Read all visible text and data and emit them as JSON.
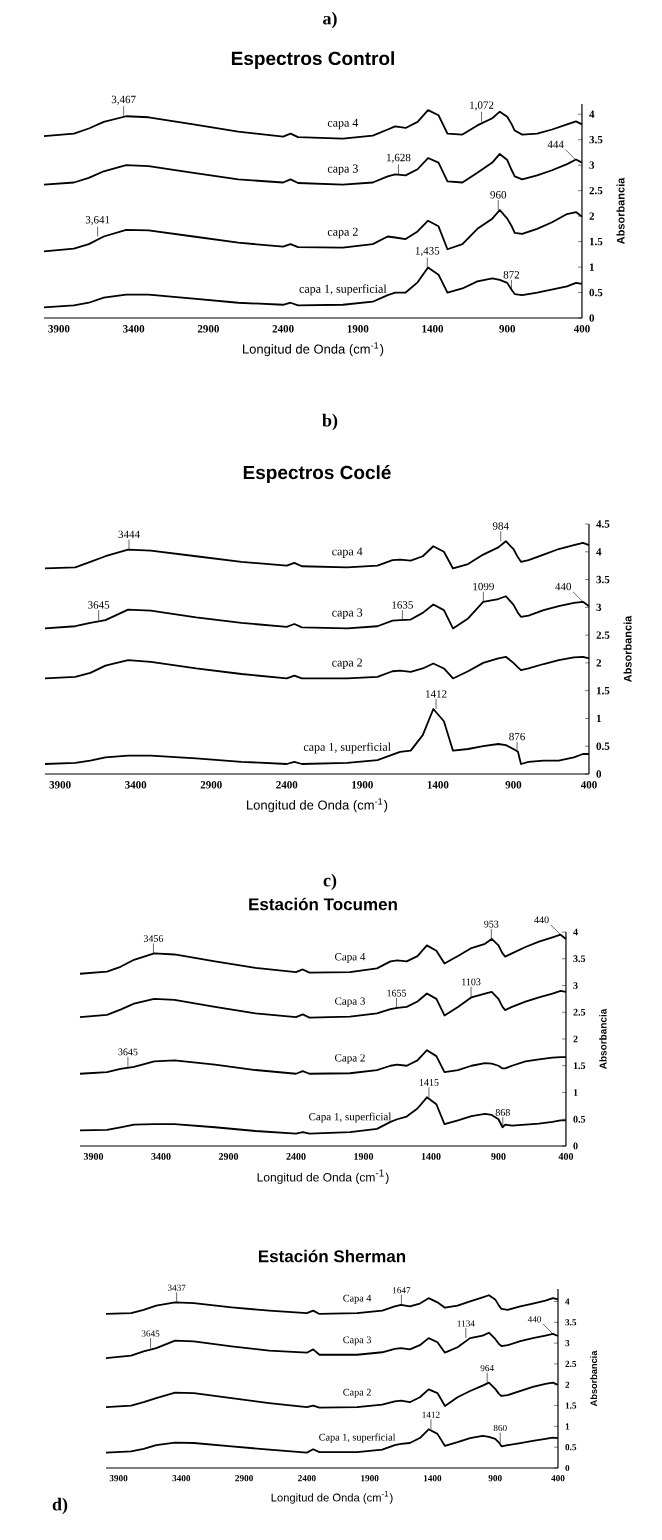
{
  "chart_data": [
    {
      "type": "line",
      "title": "Espectros Control",
      "xlabel": "Longitud de Onda (cm$^{-1}$)",
      "ylabel": "Absorbancia",
      "annotations": [
        "a)",
        {
          "text": "3,467",
          "x": 3467,
          "y": 3.96
        },
        {
          "text": "1,072",
          "x": 1072,
          "y": 3.85
        },
        {
          "text": "1,628",
          "x": 1628,
          "y": 2.82
        },
        {
          "text": "444",
          "x": 444,
          "y": 3.11
        },
        {
          "text": "3,641",
          "x": 3641,
          "y": 1.6
        },
        {
          "text": "960",
          "x": 960,
          "y": 2.12
        },
        {
          "text": "1,435",
          "x": 1435,
          "y": 0.99
        },
        {
          "text": "872",
          "x": 872,
          "y": 0.55
        }
      ],
      "x": [
        4000,
        3800,
        3700,
        3600,
        3450,
        3300,
        3000,
        2700,
        2400,
        2350,
        2300,
        2000,
        1800,
        1700,
        1650,
        1580,
        1500,
        1430,
        1360,
        1300,
        1200,
        1100,
        1000,
        950,
        900,
        870,
        850,
        800,
        700,
        600,
        500,
        440,
        400
      ],
      "xlim": [
        4000,
        400
      ],
      "xticks": [
        3900,
        3400,
        2900,
        2400,
        1900,
        1400,
        900,
        400
      ],
      "ylim": [
        0,
        4.2
      ],
      "yticks": [
        0,
        0.5,
        1,
        1.5,
        2,
        2.5,
        3,
        3.5,
        4
      ],
      "series": [
        {
          "name": "capa 4",
          "color": "#000000",
          "values": [
            3.57,
            3.62,
            3.72,
            3.85,
            3.96,
            3.94,
            3.8,
            3.66,
            3.56,
            3.62,
            3.55,
            3.52,
            3.58,
            3.7,
            3.76,
            3.73,
            3.85,
            4.08,
            3.98,
            3.62,
            3.6,
            3.78,
            3.92,
            4.05,
            3.95,
            3.8,
            3.68,
            3.6,
            3.62,
            3.7,
            3.8,
            3.86,
            3.8
          ]
        },
        {
          "name": "capa 3",
          "color": "#000000",
          "values": [
            2.62,
            2.66,
            2.75,
            2.88,
            3.0,
            2.98,
            2.85,
            2.72,
            2.66,
            2.72,
            2.65,
            2.62,
            2.66,
            2.78,
            2.82,
            2.8,
            2.92,
            3.14,
            3.05,
            2.68,
            2.66,
            2.85,
            3.05,
            3.22,
            3.1,
            2.9,
            2.78,
            2.72,
            2.8,
            2.9,
            3.02,
            3.11,
            3.05
          ]
        },
        {
          "name": "capa 2",
          "color": "#000000",
          "values": [
            1.31,
            1.36,
            1.45,
            1.6,
            1.73,
            1.72,
            1.6,
            1.48,
            1.4,
            1.45,
            1.39,
            1.38,
            1.45,
            1.6,
            1.58,
            1.55,
            1.7,
            1.91,
            1.8,
            1.35,
            1.45,
            1.75,
            1.95,
            2.12,
            1.95,
            1.8,
            1.67,
            1.65,
            1.75,
            1.88,
            2.04,
            2.08,
            1.99
          ]
        },
        {
          "name": "capa 1, superficial",
          "color": "#000000",
          "values": [
            0.21,
            0.25,
            0.3,
            0.4,
            0.46,
            0.46,
            0.38,
            0.3,
            0.26,
            0.3,
            0.25,
            0.26,
            0.32,
            0.45,
            0.5,
            0.5,
            0.7,
            0.99,
            0.85,
            0.5,
            0.58,
            0.72,
            0.78,
            0.75,
            0.69,
            0.55,
            0.47,
            0.45,
            0.5,
            0.56,
            0.62,
            0.69,
            0.67
          ]
        }
      ]
    },
    {
      "type": "line",
      "title": "Espectros Coclé",
      "xlabel": "Longitud de Onda (cm$^{-1}$)",
      "ylabel": "Absorbancia",
      "annotations": [
        "b)",
        {
          "text": "3444",
          "x": 3444,
          "y": 4.04
        },
        {
          "text": "984",
          "x": 984,
          "y": 4.19
        },
        {
          "text": "3645",
          "x": 3645,
          "y": 2.77
        },
        {
          "text": "1635",
          "x": 1635,
          "y": 2.77
        },
        {
          "text": "1099",
          "x": 1099,
          "y": 3.1
        },
        {
          "text": "440",
          "x": 440,
          "y": 3.1
        },
        {
          "text": "1412",
          "x": 1412,
          "y": 1.17
        },
        {
          "text": "876",
          "x": 876,
          "y": 0.4
        }
      ],
      "x": [
        4000,
        3800,
        3700,
        3600,
        3450,
        3300,
        3000,
        2700,
        2400,
        2350,
        2300,
        2000,
        1800,
        1700,
        1650,
        1580,
        1500,
        1430,
        1360,
        1300,
        1200,
        1100,
        1000,
        950,
        900,
        870,
        850,
        800,
        700,
        600,
        500,
        440,
        400
      ],
      "xlim": [
        4000,
        400
      ],
      "xticks": [
        3900,
        3400,
        2900,
        2400,
        1900,
        1400,
        900,
        400
      ],
      "ylim": [
        0,
        4.5
      ],
      "yticks": [
        0,
        0.5,
        1,
        1.5,
        2,
        2.5,
        3,
        3.5,
        4,
        4.5
      ],
      "series": [
        {
          "name": "capa 4",
          "color": "#000000",
          "values": [
            3.7,
            3.72,
            3.82,
            3.92,
            4.04,
            4.02,
            3.92,
            3.82,
            3.75,
            3.8,
            3.74,
            3.72,
            3.75,
            3.85,
            3.86,
            3.84,
            3.92,
            4.1,
            4.0,
            3.7,
            3.78,
            3.95,
            4.08,
            4.19,
            4.05,
            3.9,
            3.82,
            3.85,
            3.95,
            4.05,
            4.12,
            4.16,
            4.12
          ]
        },
        {
          "name": "capa 3",
          "color": "#000000",
          "values": [
            2.62,
            2.66,
            2.72,
            2.77,
            2.96,
            2.94,
            2.82,
            2.72,
            2.65,
            2.7,
            2.64,
            2.62,
            2.66,
            2.76,
            2.77,
            2.78,
            2.9,
            3.05,
            2.95,
            2.62,
            2.8,
            3.1,
            3.15,
            3.2,
            3.05,
            2.9,
            2.83,
            2.85,
            2.95,
            3.02,
            3.08,
            3.1,
            3.02
          ]
        },
        {
          "name": "capa 2",
          "color": "#000000",
          "values": [
            1.72,
            1.75,
            1.82,
            1.95,
            2.05,
            2.02,
            1.9,
            1.8,
            1.72,
            1.77,
            1.72,
            1.72,
            1.75,
            1.85,
            1.86,
            1.84,
            1.9,
            1.99,
            1.9,
            1.72,
            1.85,
            2.0,
            2.08,
            2.11,
            2.0,
            1.92,
            1.87,
            1.9,
            1.98,
            2.05,
            2.1,
            2.11,
            2.08
          ]
        },
        {
          "name": "capa 1, superficial",
          "color": "#000000",
          "values": [
            0.18,
            0.2,
            0.24,
            0.3,
            0.33,
            0.33,
            0.28,
            0.22,
            0.18,
            0.22,
            0.18,
            0.2,
            0.25,
            0.35,
            0.4,
            0.42,
            0.7,
            1.17,
            0.95,
            0.42,
            0.45,
            0.5,
            0.54,
            0.52,
            0.45,
            0.4,
            0.18,
            0.22,
            0.24,
            0.24,
            0.3,
            0.36,
            0.36
          ]
        }
      ]
    },
    {
      "type": "line",
      "title": "Estación Tocumen",
      "xlabel": "Longitud de Onda (cm$^{-1}$)",
      "ylabel": "Absorbancia",
      "annotations": [
        "c)",
        {
          "text": "3456",
          "x": 3456,
          "y": 3.6
        },
        {
          "text": "953",
          "x": 953,
          "y": 3.87
        },
        {
          "text": "440",
          "x": 440,
          "y": 3.95
        },
        {
          "text": "1655",
          "x": 1655,
          "y": 2.58
        },
        {
          "text": "1103",
          "x": 1103,
          "y": 2.79
        },
        {
          "text": "3645",
          "x": 3645,
          "y": 1.48
        },
        {
          "text": "1415",
          "x": 1415,
          "y": 0.91
        },
        {
          "text": "868",
          "x": 868,
          "y": 0.35
        }
      ],
      "x": [
        4000,
        3800,
        3700,
        3600,
        3450,
        3300,
        3000,
        2700,
        2400,
        2350,
        2300,
        2000,
        1800,
        1700,
        1650,
        1580,
        1500,
        1430,
        1360,
        1300,
        1200,
        1100,
        1000,
        950,
        900,
        870,
        850,
        800,
        700,
        600,
        500,
        440,
        400
      ],
      "xlim": [
        4000,
        400
      ],
      "xticks": [
        3900,
        3400,
        2900,
        2400,
        1900,
        1400,
        900,
        400
      ],
      "ylim": [
        0,
        4
      ],
      "yticks": [
        0,
        0.5,
        1,
        1.5,
        2,
        2.5,
        3,
        3.5,
        4
      ],
      "series": [
        {
          "name": "Capa 4",
          "color": "#000000",
          "values": [
            3.22,
            3.26,
            3.35,
            3.48,
            3.6,
            3.58,
            3.45,
            3.33,
            3.25,
            3.3,
            3.24,
            3.25,
            3.32,
            3.45,
            3.47,
            3.45,
            3.55,
            3.75,
            3.65,
            3.41,
            3.55,
            3.7,
            3.78,
            3.87,
            3.75,
            3.6,
            3.54,
            3.6,
            3.72,
            3.82,
            3.9,
            3.95,
            3.87
          ]
        },
        {
          "name": "Capa 3",
          "color": "#000000",
          "values": [
            2.41,
            2.45,
            2.55,
            2.66,
            2.75,
            2.73,
            2.6,
            2.48,
            2.41,
            2.46,
            2.4,
            2.42,
            2.48,
            2.56,
            2.58,
            2.6,
            2.7,
            2.85,
            2.75,
            2.44,
            2.6,
            2.78,
            2.85,
            2.88,
            2.75,
            2.6,
            2.54,
            2.6,
            2.7,
            2.78,
            2.85,
            2.9,
            2.88
          ]
        },
        {
          "name": "Capa 2",
          "color": "#000000",
          "values": [
            1.35,
            1.38,
            1.44,
            1.48,
            1.58,
            1.6,
            1.52,
            1.42,
            1.35,
            1.4,
            1.35,
            1.36,
            1.42,
            1.5,
            1.52,
            1.5,
            1.6,
            1.79,
            1.68,
            1.38,
            1.42,
            1.5,
            1.55,
            1.54,
            1.5,
            1.45,
            1.45,
            1.5,
            1.58,
            1.62,
            1.65,
            1.66,
            1.66
          ]
        },
        {
          "name": "Capa 1, superficial",
          "color": "#000000",
          "values": [
            0.29,
            0.3,
            0.35,
            0.4,
            0.41,
            0.41,
            0.35,
            0.28,
            0.23,
            0.26,
            0.23,
            0.26,
            0.32,
            0.45,
            0.5,
            0.55,
            0.7,
            0.91,
            0.78,
            0.41,
            0.48,
            0.56,
            0.6,
            0.58,
            0.5,
            0.35,
            0.4,
            0.38,
            0.4,
            0.42,
            0.45,
            0.48,
            0.48
          ]
        }
      ]
    },
    {
      "type": "line",
      "title": "Estación Sherman",
      "xlabel": "Longitud de Onda (cm$^{-1}$)",
      "ylabel": "Absorbancia",
      "annotations": [
        "d)",
        {
          "text": "3437",
          "x": 3437,
          "y": 3.98
        },
        {
          "text": "1647",
          "x": 1647,
          "y": 3.92
        },
        {
          "text": "3645",
          "x": 3645,
          "y": 2.88
        },
        {
          "text": "1134",
          "x": 1134,
          "y": 3.12
        },
        {
          "text": "440",
          "x": 440,
          "y": 3.22
        },
        {
          "text": "964",
          "x": 964,
          "y": 2.05
        },
        {
          "text": "1412",
          "x": 1412,
          "y": 0.93
        },
        {
          "text": "860",
          "x": 860,
          "y": 0.61
        }
      ],
      "x": [
        4000,
        3800,
        3700,
        3600,
        3450,
        3300,
        3000,
        2700,
        2400,
        2350,
        2300,
        2000,
        1800,
        1700,
        1650,
        1580,
        1500,
        1430,
        1360,
        1300,
        1200,
        1100,
        1000,
        950,
        900,
        870,
        850,
        800,
        700,
        600,
        500,
        440,
        400
      ],
      "xlim": [
        4000,
        400
      ],
      "xticks": [
        3900,
        3400,
        2900,
        2400,
        1900,
        1400,
        900,
        400
      ],
      "ylim": [
        0,
        4.3
      ],
      "yticks": [
        0,
        0.5,
        1,
        1.5,
        2,
        2.5,
        3,
        3.5,
        4
      ],
      "series": [
        {
          "name": "Capa 4",
          "color": "#000000",
          "values": [
            3.7,
            3.72,
            3.8,
            3.9,
            3.98,
            3.96,
            3.86,
            3.78,
            3.72,
            3.78,
            3.7,
            3.72,
            3.78,
            3.88,
            3.92,
            3.88,
            3.95,
            4.08,
            3.98,
            3.85,
            3.9,
            4.0,
            4.1,
            4.15,
            4.05,
            3.9,
            3.82,
            3.8,
            3.88,
            3.95,
            4.02,
            4.08,
            4.05
          ]
        },
        {
          "name": "Capa 3",
          "color": "#000000",
          "values": [
            2.64,
            2.7,
            2.8,
            2.88,
            3.06,
            3.04,
            2.92,
            2.82,
            2.77,
            2.85,
            2.72,
            2.72,
            2.78,
            2.86,
            2.88,
            2.85,
            2.95,
            3.12,
            3.02,
            2.77,
            2.9,
            3.12,
            3.18,
            3.25,
            3.1,
            2.98,
            2.93,
            2.95,
            3.05,
            3.12,
            3.18,
            3.22,
            3.17
          ]
        },
        {
          "name": "Capa 2",
          "color": "#000000",
          "values": [
            1.46,
            1.5,
            1.58,
            1.68,
            1.81,
            1.8,
            1.68,
            1.56,
            1.46,
            1.5,
            1.45,
            1.46,
            1.52,
            1.6,
            1.62,
            1.58,
            1.7,
            1.89,
            1.8,
            1.49,
            1.7,
            1.85,
            1.98,
            2.05,
            1.9,
            1.78,
            1.73,
            1.75,
            1.85,
            1.95,
            2.02,
            2.05,
            2.0
          ]
        },
        {
          "name": "Capa 1, superficial",
          "color": "#000000",
          "values": [
            0.37,
            0.4,
            0.46,
            0.55,
            0.61,
            0.6,
            0.52,
            0.44,
            0.37,
            0.45,
            0.38,
            0.38,
            0.44,
            0.55,
            0.58,
            0.6,
            0.72,
            0.93,
            0.82,
            0.53,
            0.62,
            0.72,
            0.77,
            0.75,
            0.7,
            0.61,
            0.52,
            0.55,
            0.6,
            0.65,
            0.7,
            0.73,
            0.72
          ]
        }
      ]
    }
  ]
}
